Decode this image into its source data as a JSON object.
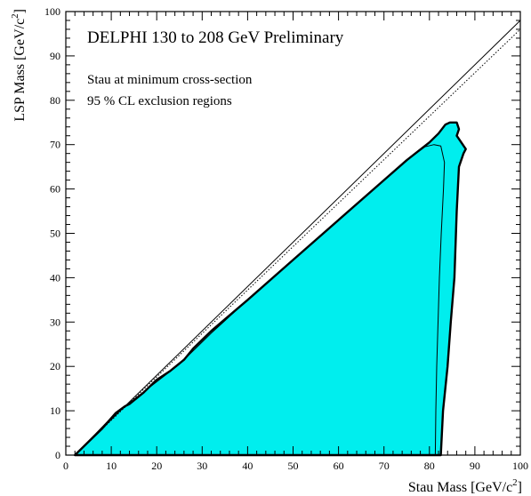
{
  "chart_data": {
    "type": "area",
    "title": "DELPHI 130 to 208 GeV Preliminary",
    "annotations": [
      "Stau at minimum cross-section",
      "95 % CL exclusion regions"
    ],
    "xlabel": {
      "text": "Stau Mass [GeV/c",
      "sup": "2",
      "close": "]"
    },
    "ylabel": {
      "text": "LSP Mass [GeV/c",
      "sup": "2",
      "close": "]"
    },
    "xlim": [
      0,
      100
    ],
    "ylim": [
      0,
      100
    ],
    "x_ticks": [
      0,
      10,
      20,
      30,
      40,
      50,
      60,
      70,
      80,
      90,
      100
    ],
    "y_ticks": [
      0,
      10,
      20,
      30,
      40,
      50,
      60,
      70,
      80,
      90,
      100
    ],
    "grid": false,
    "fill_color": "#00eeee",
    "series": [
      {
        "style": "filled-thick",
        "x": [
          2,
          5,
          8,
          11,
          13,
          14,
          17,
          20,
          23,
          26,
          28,
          32,
          40,
          50,
          60,
          70,
          75,
          80,
          82,
          83.5,
          84.5,
          86,
          86.5,
          86,
          88,
          87.5,
          86.5,
          86,
          85.5,
          84.7,
          84,
          83,
          82.5,
          2
        ],
        "y": [
          0,
          3,
          6,
          9.5,
          11,
          11.5,
          14,
          17,
          19,
          21.5,
          24,
          28,
          35,
          44,
          53,
          62,
          66.5,
          70.5,
          72.5,
          74.5,
          75,
          75,
          73.5,
          72,
          69,
          68,
          65,
          55,
          40,
          30,
          20,
          10,
          0,
          0
        ]
      },
      {
        "style": "thin-outline",
        "x": [
          2,
          11,
          13,
          25,
          32,
          40,
          50,
          60,
          70,
          75,
          79,
          81,
          82.5,
          83.3,
          83.1,
          82.6,
          82.2,
          81.9,
          81.6,
          81.4,
          81.3
        ],
        "y": [
          0,
          9.5,
          11,
          20.5,
          27.5,
          35,
          44,
          53,
          62,
          66.5,
          69.5,
          70,
          69.7,
          66,
          60,
          50,
          40,
          30,
          20,
          10,
          0
        ]
      }
    ],
    "reference_lines": [
      {
        "style": "solid",
        "x": [
          2,
          100
        ],
        "y": [
          0,
          98
        ]
      },
      {
        "style": "dotted",
        "x": [
          2,
          100
        ],
        "y": [
          0,
          96
        ]
      }
    ]
  }
}
